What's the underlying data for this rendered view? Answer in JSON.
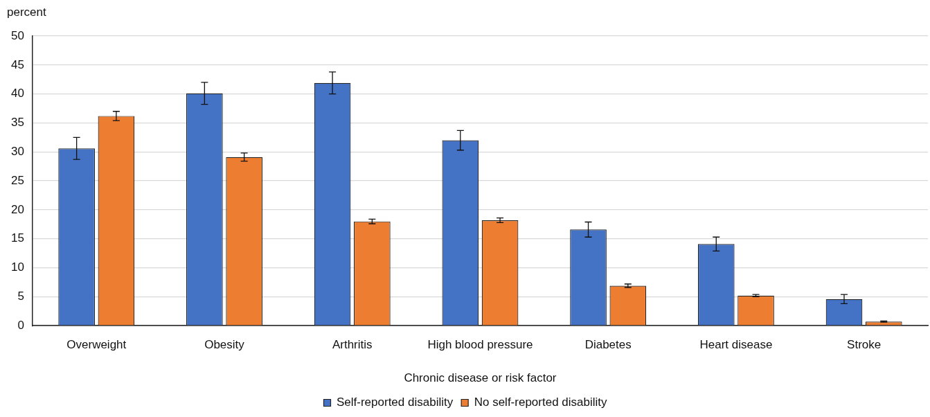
{
  "chart_data": {
    "type": "bar",
    "ylabel": "percent",
    "xlabel": "Chronic disease or risk factor",
    "categories": [
      "Overweight",
      "Obesity",
      "Arthritis",
      "High blood pressure",
      "Diabetes",
      "Heart disease",
      "Stroke"
    ],
    "series": [
      {
        "name": "Self-reported disability",
        "color": "#4472c4",
        "values": [
          30.6,
          40.1,
          41.9,
          32.0,
          16.6,
          14.1,
          4.6
        ],
        "errors": [
          1.9,
          1.9,
          1.9,
          1.7,
          1.3,
          1.2,
          0.8
        ]
      },
      {
        "name": "No self-reported disability",
        "color": "#ed7d31",
        "values": [
          36.2,
          29.1,
          18.0,
          18.2,
          6.9,
          5.2,
          0.7
        ],
        "errors": [
          0.8,
          0.7,
          0.4,
          0.4,
          0.3,
          0.2,
          0.1
        ]
      }
    ],
    "ylim": [
      0,
      50
    ],
    "yticks": [
      0,
      5,
      10,
      15,
      20,
      25,
      30,
      35,
      40,
      45,
      50
    ],
    "grid": "y",
    "legend": "bottom"
  }
}
